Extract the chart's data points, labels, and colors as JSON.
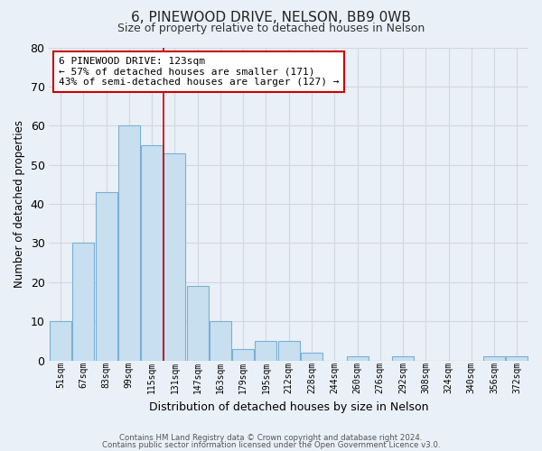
{
  "title": "6, PINEWOOD DRIVE, NELSON, BB9 0WB",
  "subtitle": "Size of property relative to detached houses in Nelson",
  "xlabel": "Distribution of detached houses by size in Nelson",
  "ylabel": "Number of detached properties",
  "bar_color": "#c8dff0",
  "bar_edge_color": "#7ab0d4",
  "categories": [
    "51sqm",
    "67sqm",
    "83sqm",
    "99sqm",
    "115sqm",
    "131sqm",
    "147sqm",
    "163sqm",
    "179sqm",
    "195sqm",
    "212sqm",
    "228sqm",
    "244sqm",
    "260sqm",
    "276sqm",
    "292sqm",
    "308sqm",
    "324sqm",
    "340sqm",
    "356sqm",
    "372sqm"
  ],
  "values": [
    10,
    30,
    43,
    60,
    55,
    53,
    19,
    10,
    3,
    5,
    5,
    2,
    0,
    1,
    0,
    1,
    0,
    0,
    0,
    1,
    1
  ],
  "ylim": [
    0,
    80
  ],
  "yticks": [
    0,
    10,
    20,
    30,
    40,
    50,
    60,
    70,
    80
  ],
  "marker_color": "#cc0000",
  "annotation_title": "6 PINEWOOD DRIVE: 123sqm",
  "annotation_line1": "← 57% of detached houses are smaller (171)",
  "annotation_line2": "43% of semi-detached houses are larger (127) →",
  "annotation_box_color": "#ffffff",
  "annotation_border_color": "#cc0000",
  "footer1": "Contains HM Land Registry data © Crown copyright and database right 2024.",
  "footer2": "Contains public sector information licensed under the Open Government Licence v3.0.",
  "bg_color": "#eaf0f7",
  "plot_bg_color": "#eaf0f7",
  "grid_color": "#d0d8e4"
}
